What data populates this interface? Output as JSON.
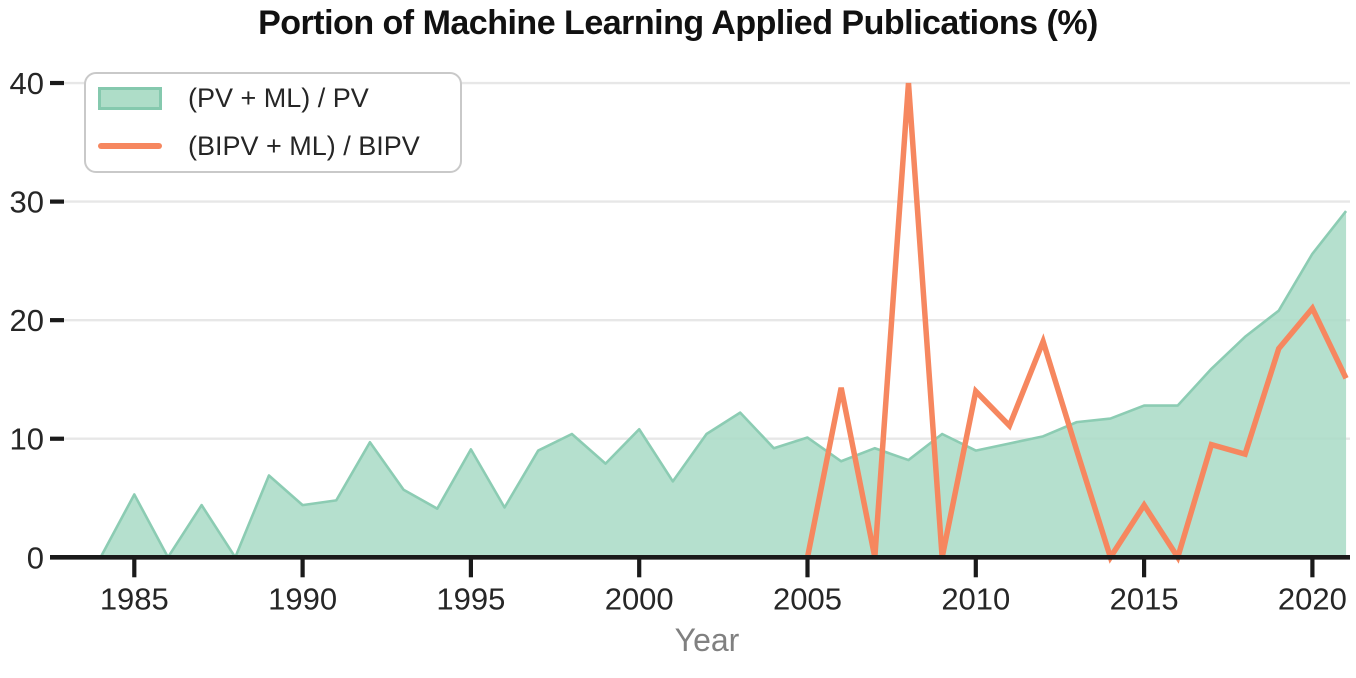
{
  "chart_data": {
    "type": "area+line",
    "title": "Portion of Machine Learning Applied Publications (%)",
    "xlabel": "Year",
    "x_ticks": [
      1985,
      1990,
      1995,
      2000,
      2005,
      2010,
      2015,
      2020
    ],
    "y_ticks": [
      0,
      10,
      20,
      30,
      40
    ],
    "ylim": [
      0,
      40
    ],
    "xlim": [
      1983,
      2021.5
    ],
    "grid": "horizontal-light",
    "legend_position": "upper-left",
    "colors": {
      "grid": "#e7e7e7",
      "axis": "#1a1a1a",
      "tick_label": "#262626",
      "title": "#111111",
      "xlabel": "#808080",
      "area_fill": "#abdcc7",
      "area_outline": "#8cccb3",
      "line": "#f6875f"
    },
    "series": [
      {
        "name": "(PV + ML) / PV",
        "type": "area",
        "x": [
          1984,
          1985,
          1986,
          1987,
          1988,
          1989,
          1990,
          1991,
          1992,
          1993,
          1994,
          1995,
          1996,
          1997,
          1998,
          1999,
          2000,
          2001,
          2002,
          2003,
          2004,
          2005,
          2006,
          2007,
          2008,
          2009,
          2010,
          2011,
          2012,
          2013,
          2014,
          2015,
          2016,
          2017,
          2018,
          2019,
          2020,
          2021
        ],
        "values": [
          0,
          5.3,
          0,
          4.4,
          0,
          6.9,
          4.4,
          4.8,
          9.7,
          5.7,
          4.1,
          9.1,
          4.2,
          9.0,
          10.4,
          7.9,
          10.8,
          6.4,
          10.4,
          12.2,
          9.2,
          10.1,
          8.1,
          9.2,
          8.2,
          10.4,
          9.0,
          9.6,
          10.2,
          11.4,
          11.7,
          12.8,
          12.8,
          15.9,
          18.6,
          20.8,
          25.6,
          29.2
        ]
      },
      {
        "name": "(BIPV + ML) / BIPV",
        "type": "line",
        "x": [
          2005,
          2006,
          2007,
          2008,
          2009,
          2010,
          2011,
          2012,
          2013,
          2014,
          2015,
          2016,
          2017,
          2018,
          2019,
          2020,
          2021
        ],
        "values": [
          0,
          14.3,
          0,
          40,
          0,
          14.0,
          11.1,
          18.2,
          9.0,
          0,
          4.4,
          0,
          9.5,
          8.7,
          17.6,
          21.0,
          15.1
        ]
      }
    ]
  }
}
